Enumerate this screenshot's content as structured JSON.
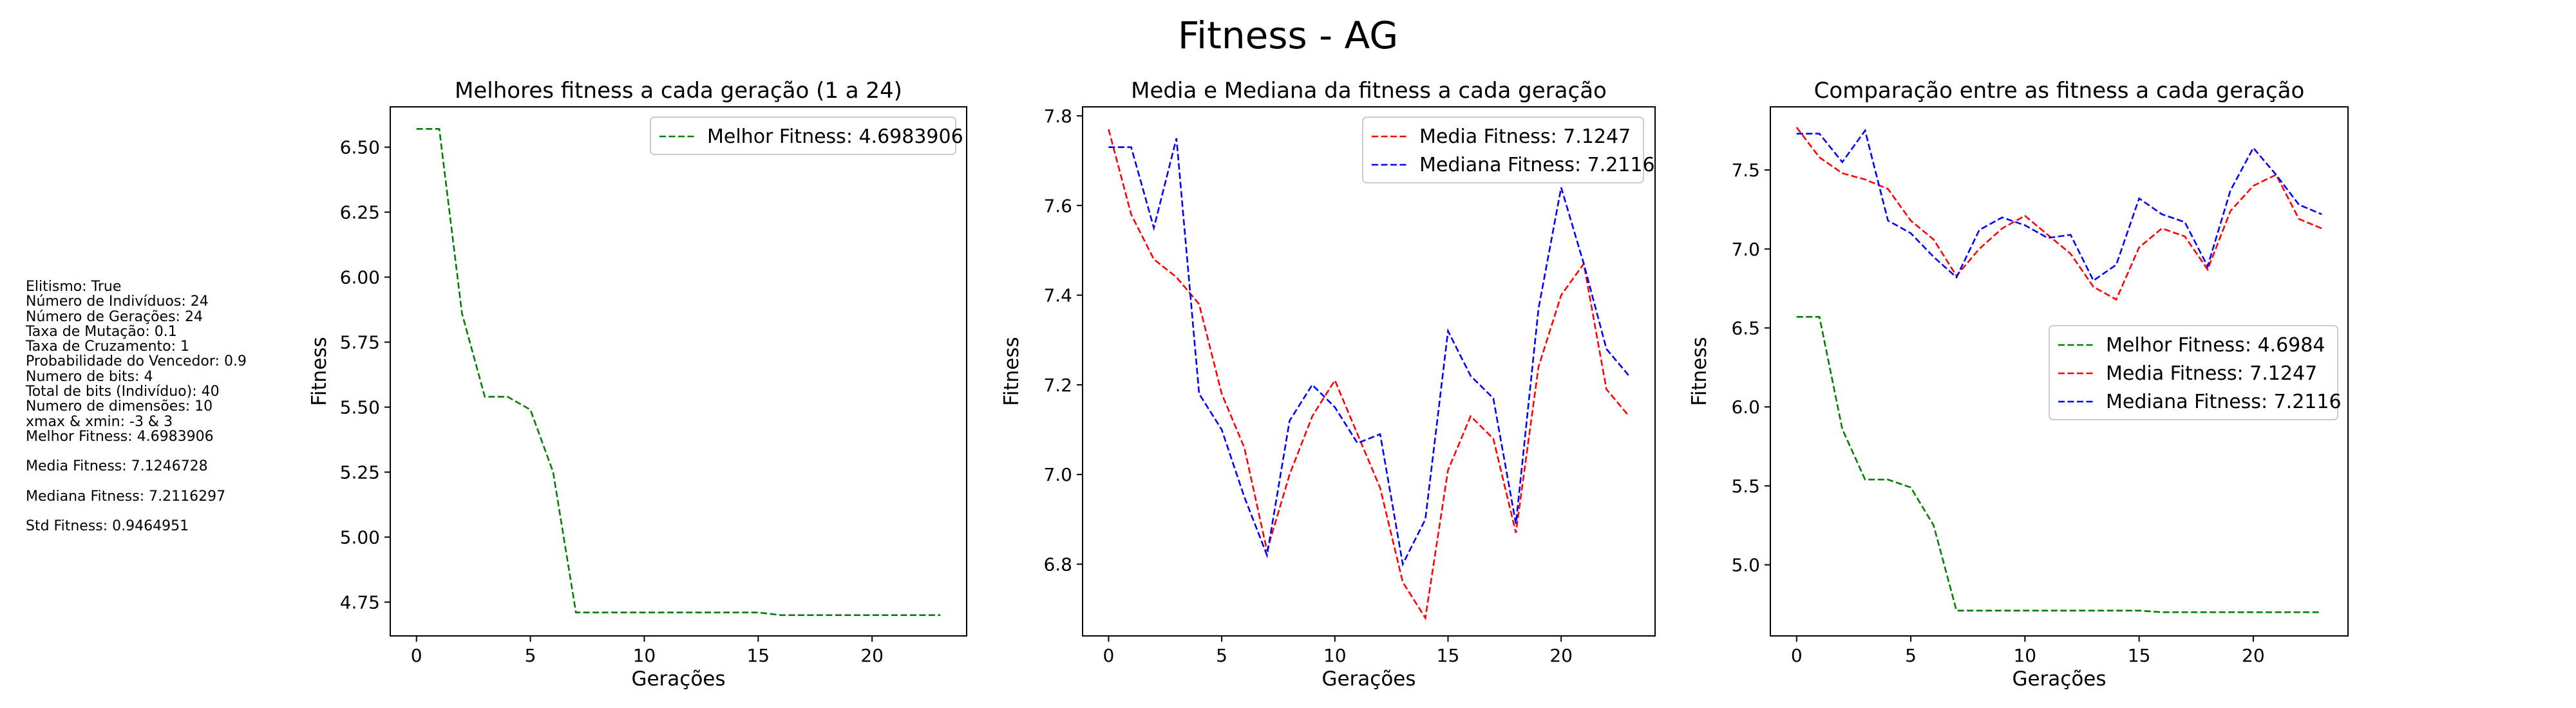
{
  "figure": {
    "suptitle": "Fitness - AG"
  },
  "info_panel": {
    "lines": [
      "Elitismo: True",
      "Número de Indivíduos: 24",
      "Número de Gerações: 24",
      "Taxa de Mutação: 0.1",
      "Taxa de Cruzamento: 1",
      "Probabilidade do Vencedor: 0.9",
      "Numero de bits: 4",
      "Total de bits (Indivíduo): 40",
      "Numero de dimensões: 10",
      "xmax & xmin: -3 & 3",
      "Melhor Fitness: 4.6983906",
      "",
      "Media Fitness: 7.1246728",
      "",
      "Mediana Fitness: 7.2116297",
      "",
      "Std Fitness: 0.9464951"
    ]
  },
  "colors": {
    "best": "#008000",
    "mean": "#ff0000",
    "median": "#0000ff"
  },
  "chart_data": [
    {
      "type": "line",
      "title": "Melhores fitness a cada geração (1 a 24)",
      "xlabel": "Gerações",
      "ylabel": "Fitness",
      "xlim": [
        -1.15,
        24.15
      ],
      "ylim": [
        4.62,
        6.655
      ],
      "xticks": [
        0,
        5,
        10,
        15,
        20
      ],
      "yticks": [
        4.75,
        5.0,
        5.25,
        5.5,
        5.75,
        6.0,
        6.25,
        6.5
      ],
      "ytick_labels": [
        "4.75",
        "5.00",
        "5.25",
        "5.50",
        "5.75",
        "6.00",
        "6.25",
        "6.50"
      ],
      "grid": false,
      "legend_position": "upper right",
      "x": [
        0,
        1,
        2,
        3,
        4,
        5,
        6,
        7,
        8,
        9,
        10,
        11,
        12,
        13,
        14,
        15,
        16,
        17,
        18,
        19,
        20,
        21,
        22,
        23
      ],
      "series": [
        {
          "name": "Melhor Fitness: 4.6983906",
          "color": "best",
          "values": [
            6.57,
            6.57,
            5.86,
            5.54,
            5.54,
            5.49,
            5.25,
            4.71,
            4.71,
            4.71,
            4.71,
            4.71,
            4.71,
            4.71,
            4.71,
            4.71,
            4.7,
            4.7,
            4.7,
            4.7,
            4.7,
            4.7,
            4.7,
            4.7
          ]
        }
      ]
    },
    {
      "type": "line",
      "title": "Media e Mediana da fitness a cada geração",
      "xlabel": "Gerações",
      "ylabel": "Fitness",
      "xlim": [
        -1.15,
        24.15
      ],
      "ylim": [
        6.64,
        7.82
      ],
      "xticks": [
        0,
        5,
        10,
        15,
        20
      ],
      "yticks": [
        6.8,
        7.0,
        7.2,
        7.4,
        7.6,
        7.8
      ],
      "ytick_labels": [
        "6.8",
        "7.0",
        "7.2",
        "7.4",
        "7.6",
        "7.8"
      ],
      "grid": false,
      "legend_position": "upper right",
      "x": [
        0,
        1,
        2,
        3,
        4,
        5,
        6,
        7,
        8,
        9,
        10,
        11,
        12,
        13,
        14,
        15,
        16,
        17,
        18,
        19,
        20,
        21,
        22,
        23
      ],
      "series": [
        {
          "name": "Media Fitness: 7.1247",
          "color": "mean",
          "values": [
            7.77,
            7.58,
            7.48,
            7.44,
            7.38,
            7.18,
            7.06,
            6.83,
            7.0,
            7.13,
            7.21,
            7.09,
            6.97,
            6.76,
            6.68,
            7.01,
            7.13,
            7.08,
            6.87,
            7.24,
            7.4,
            7.47,
            7.19,
            7.13
          ]
        },
        {
          "name": "Mediana Fitness: 7.2116",
          "color": "median",
          "values": [
            7.73,
            7.73,
            7.55,
            7.75,
            7.18,
            7.1,
            6.95,
            6.82,
            7.12,
            7.2,
            7.15,
            7.07,
            7.09,
            6.8,
            6.9,
            7.32,
            7.22,
            7.17,
            6.89,
            7.37,
            7.64,
            7.47,
            7.28,
            7.22
          ]
        }
      ]
    },
    {
      "type": "line",
      "title": "Comparação entre as fitness a cada geração",
      "xlabel": "Gerações",
      "ylabel": "Fitness",
      "xlim": [
        -1.15,
        24.15
      ],
      "ylim": [
        4.55,
        7.9
      ],
      "xticks": [
        0,
        5,
        10,
        15,
        20
      ],
      "yticks": [
        5.0,
        5.5,
        6.0,
        6.5,
        7.0,
        7.5
      ],
      "ytick_labels": [
        "5.0",
        "5.5",
        "6.0",
        "6.5",
        "7.0",
        "7.5"
      ],
      "grid": false,
      "legend_position": "center right",
      "x": [
        0,
        1,
        2,
        3,
        4,
        5,
        6,
        7,
        8,
        9,
        10,
        11,
        12,
        13,
        14,
        15,
        16,
        17,
        18,
        19,
        20,
        21,
        22,
        23
      ],
      "series": [
        {
          "name": "Melhor Fitness: 4.6984",
          "color": "best",
          "values": [
            6.57,
            6.57,
            5.86,
            5.54,
            5.54,
            5.49,
            5.25,
            4.71,
            4.71,
            4.71,
            4.71,
            4.71,
            4.71,
            4.71,
            4.71,
            4.71,
            4.7,
            4.7,
            4.7,
            4.7,
            4.7,
            4.7,
            4.7,
            4.7
          ]
        },
        {
          "name": "Media Fitness: 7.1247",
          "color": "mean",
          "values": [
            7.77,
            7.58,
            7.48,
            7.44,
            7.38,
            7.18,
            7.06,
            6.83,
            7.0,
            7.13,
            7.21,
            7.09,
            6.97,
            6.76,
            6.68,
            7.01,
            7.13,
            7.08,
            6.87,
            7.24,
            7.4,
            7.47,
            7.19,
            7.13
          ]
        },
        {
          "name": "Mediana Fitness: 7.2116",
          "color": "median",
          "values": [
            7.73,
            7.73,
            7.55,
            7.75,
            7.18,
            7.1,
            6.95,
            6.82,
            7.12,
            7.2,
            7.15,
            7.07,
            7.09,
            6.8,
            6.9,
            7.32,
            7.22,
            7.17,
            6.89,
            7.37,
            7.64,
            7.47,
            7.28,
            7.22
          ]
        }
      ]
    }
  ]
}
